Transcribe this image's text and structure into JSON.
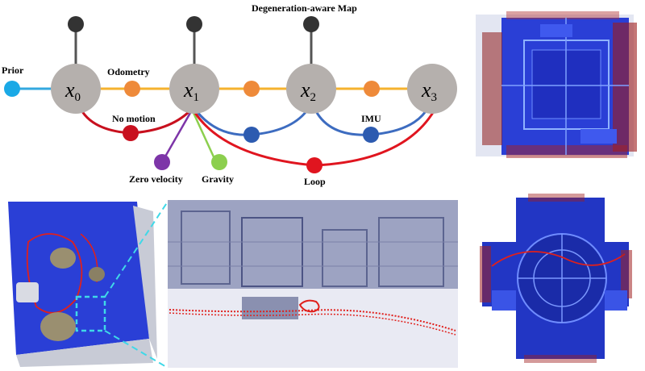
{
  "title": "Degeneration-aware Map",
  "nodes": [
    {
      "id": "x0",
      "base": "x",
      "sub": "0"
    },
    {
      "id": "x1",
      "base": "x",
      "sub": "1"
    },
    {
      "id": "x2",
      "base": "x",
      "sub": "2"
    },
    {
      "id": "x3",
      "base": "x",
      "sub": "3"
    }
  ],
  "factors": {
    "prior": "Prior",
    "odometry": "Odometry",
    "no_motion": "No motion",
    "zero_velocity": "Zero velocity",
    "gravity": "Gravity",
    "imu": "IMU",
    "loop": "Loop"
  },
  "colors": {
    "state_node": "#b5b0ad",
    "landmark": "#333333",
    "prior": "#1aa9e6",
    "prior_edge": "#33a8df",
    "odometry": "#ee8a3a",
    "odometry_edge": "#f5b22e",
    "no_motion": "#c8101e",
    "zero_velocity": "#7d35a8",
    "gravity": "#8ccf4e",
    "imu": "#2d5bb0",
    "imu_edge": "#3d6cc0",
    "loop": "#e0151f",
    "trajectory": "#e0201c"
  }
}
